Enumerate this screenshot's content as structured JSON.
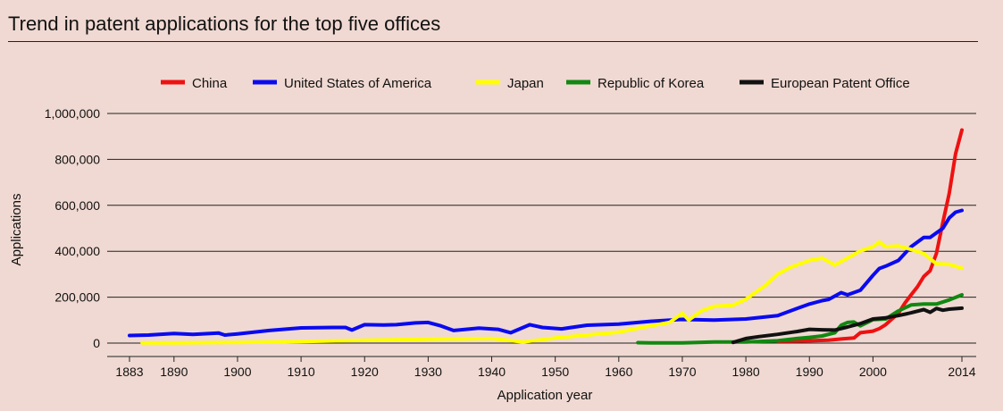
{
  "chart_data": {
    "type": "line",
    "title": "Trend in patent applications for the top five offices",
    "xlabel": "Application year",
    "ylabel": "Applications",
    "xlim": [
      1883,
      2014
    ],
    "ylim": [
      0,
      1000000
    ],
    "x_ticks": [
      1883,
      1890,
      1900,
      1910,
      1920,
      1930,
      1940,
      1950,
      1960,
      1970,
      1980,
      1990,
      2000,
      2014
    ],
    "y_ticks": [
      0,
      200000,
      400000,
      600000,
      800000,
      1000000
    ],
    "y_tick_labels": [
      "0",
      "200,000",
      "400,000",
      "600,000",
      "800,000",
      "1,000,000"
    ],
    "grid": "horizontal",
    "legend_position": "top",
    "series": [
      {
        "name": "China",
        "color": "#ee1111",
        "x": [
          1985,
          1990,
          1993,
          1995,
          1997,
          1998,
          2000,
          2001,
          2002,
          2003,
          2004,
          2005,
          2006,
          2007,
          2008,
          2009,
          2010,
          2011,
          2012,
          2013,
          2014
        ],
        "y": [
          8000,
          10000,
          13000,
          18000,
          22000,
          45000,
          52000,
          63000,
          80000,
          105000,
          130000,
          173000,
          210000,
          245000,
          290000,
          315000,
          391000,
          526000,
          652000,
          825000,
          928000
        ]
      },
      {
        "name": "United States of America",
        "color": "#0a0af0",
        "x": [
          1883,
          1886,
          1890,
          1893,
          1897,
          1898,
          1900,
          1905,
          1910,
          1915,
          1917,
          1918,
          1920,
          1923,
          1925,
          1928,
          1930,
          1932,
          1934,
          1938,
          1941,
          1943,
          1946,
          1948,
          1951,
          1955,
          1960,
          1965,
          1970,
          1975,
          1980,
          1985,
          1988,
          1990,
          1992,
          1993,
          1995,
          1996,
          1998,
          2000,
          2001,
          2002,
          2004,
          2006,
          2008,
          2009,
          2010,
          2011,
          2012,
          2013,
          2014
        ],
        "y": [
          33000,
          35000,
          42000,
          38000,
          44000,
          35000,
          40000,
          55000,
          66000,
          68000,
          68000,
          57000,
          80000,
          79000,
          80000,
          88000,
          90000,
          75000,
          55000,
          65000,
          60000,
          45000,
          80000,
          68000,
          62000,
          78000,
          83000,
          95000,
          103000,
          100000,
          105000,
          120000,
          150000,
          170000,
          185000,
          190000,
          220000,
          210000,
          230000,
          295000,
          325000,
          335000,
          360000,
          420000,
          460000,
          460000,
          480000,
          500000,
          545000,
          570000,
          578000
        ]
      },
      {
        "name": "Japan",
        "color": "#ffff00",
        "x": [
          1885,
          1890,
          1900,
          1910,
          1920,
          1930,
          1940,
          1945,
          1950,
          1955,
          1960,
          1965,
          1968,
          1970,
          1971,
          1973,
          1975,
          1978,
          1980,
          1983,
          1985,
          1987,
          1990,
          1992,
          1994,
          1996,
          1998,
          2000,
          2001,
          2002,
          2004,
          2006,
          2008,
          2010,
          2012,
          2014
        ],
        "y": [
          1000,
          1000,
          3000,
          7000,
          12000,
          17000,
          20000,
          5000,
          22000,
          35000,
          48000,
          75000,
          90000,
          130000,
          100000,
          140000,
          160000,
          165000,
          191000,
          250000,
          300000,
          330000,
          360000,
          370000,
          340000,
          370000,
          401000,
          420000,
          440000,
          420000,
          423000,
          408000,
          390000,
          345000,
          343000,
          326000
        ]
      },
      {
        "name": "Republic of Korea",
        "color": "#118811",
        "x": [
          1963,
          1965,
          1970,
          1975,
          1980,
          1985,
          1988,
          1990,
          1992,
          1994,
          1995,
          1996,
          1997,
          1998,
          2000,
          2002,
          2004,
          2006,
          2008,
          2010,
          2012,
          2014
        ],
        "y": [
          2000,
          1000,
          1000,
          5000,
          5000,
          10000,
          20000,
          25000,
          31000,
          45000,
          78000,
          90000,
          92000,
          75000,
          102000,
          105000,
          140000,
          166000,
          170000,
          170000,
          188000,
          210000
        ]
      },
      {
        "name": "European Patent Office",
        "color": "#111111",
        "x": [
          1978,
          1980,
          1982,
          1985,
          1988,
          1990,
          1992,
          1994,
          1996,
          1998,
          2000,
          2002,
          2004,
          2006,
          2008,
          2009,
          2010,
          2011,
          2012,
          2014
        ],
        "y": [
          3000,
          20000,
          28000,
          38000,
          50000,
          60000,
          58000,
          57000,
          70000,
          85000,
          105000,
          110000,
          120000,
          132000,
          146000,
          134000,
          151000,
          143000,
          148000,
          152000
        ]
      }
    ]
  }
}
